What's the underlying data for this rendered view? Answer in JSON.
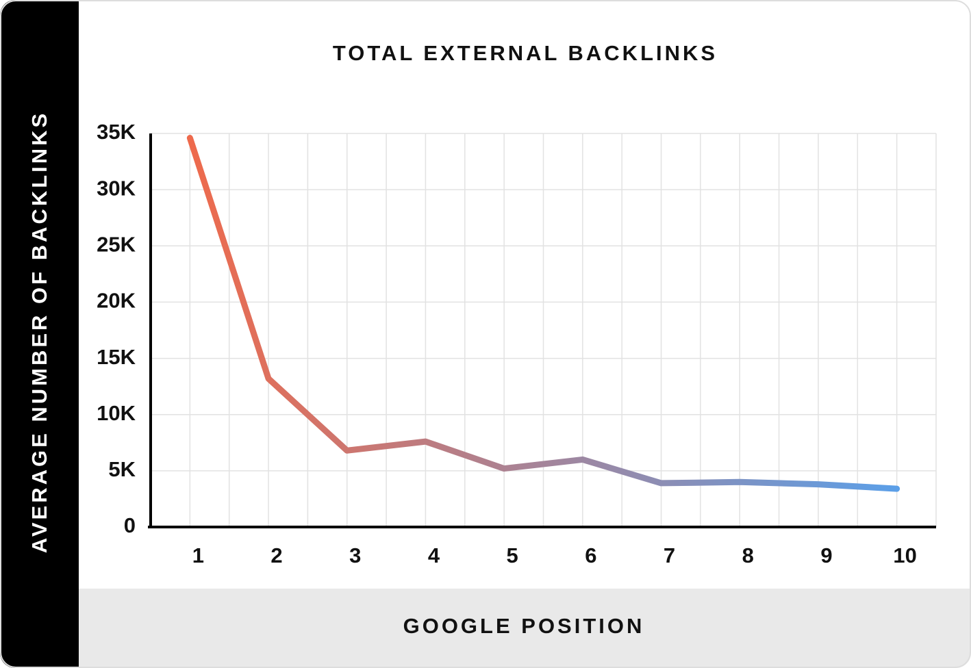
{
  "chart_data": {
    "type": "line",
    "title": "TOTAL EXTERNAL BACKLINKS",
    "x_label": "GOOGLE POSITION",
    "y_label": "AVERAGE NUMBER OF BACKLINKS",
    "categories": [
      "1",
      "2",
      "3",
      "4",
      "5",
      "6",
      "7",
      "8",
      "9",
      "10"
    ],
    "values": [
      34600,
      13200,
      6800,
      7600,
      5200,
      6000,
      3900,
      4000,
      3800,
      3400
    ],
    "colors": [
      "#ee6a4c",
      "#5b9fe8"
    ],
    "ylim": [
      0,
      35000
    ],
    "yticks": [
      0,
      {
        "value": 5000,
        "label": "5K"
      },
      {
        "value": 10000,
        "label": "10K"
      },
      {
        "value": 15000,
        "label": "15K"
      },
      {
        "value": 20000,
        "label": "20K"
      },
      {
        "value": 25000,
        "label": "25K"
      },
      {
        "value": 30000,
        "label": "30K"
      },
      {
        "value": 35000,
        "label": "35K"
      }
    ],
    "grid": true
  }
}
